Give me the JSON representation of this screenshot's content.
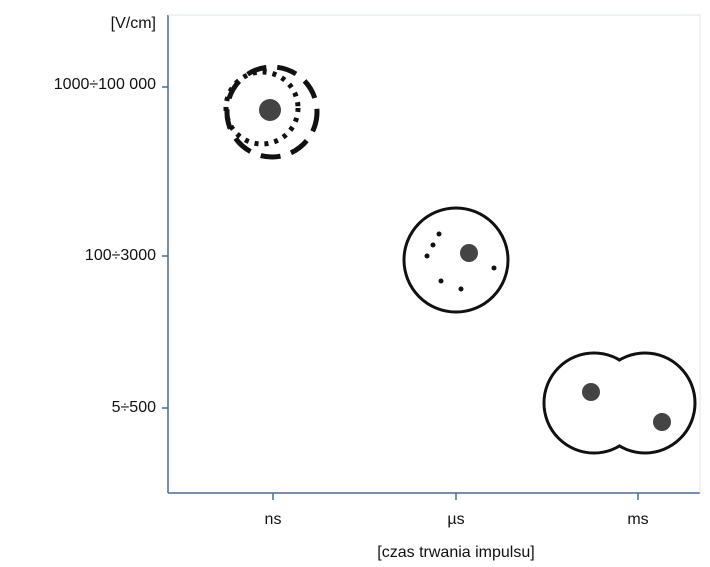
{
  "y_axis": {
    "unit": "[V/cm]",
    "labels": [
      "1000÷100 000",
      "100÷3000",
      "5÷500"
    ]
  },
  "x_axis": {
    "labels": [
      "ns",
      "µs",
      "ms"
    ],
    "title": "[czas trwania impulsu]"
  }
}
